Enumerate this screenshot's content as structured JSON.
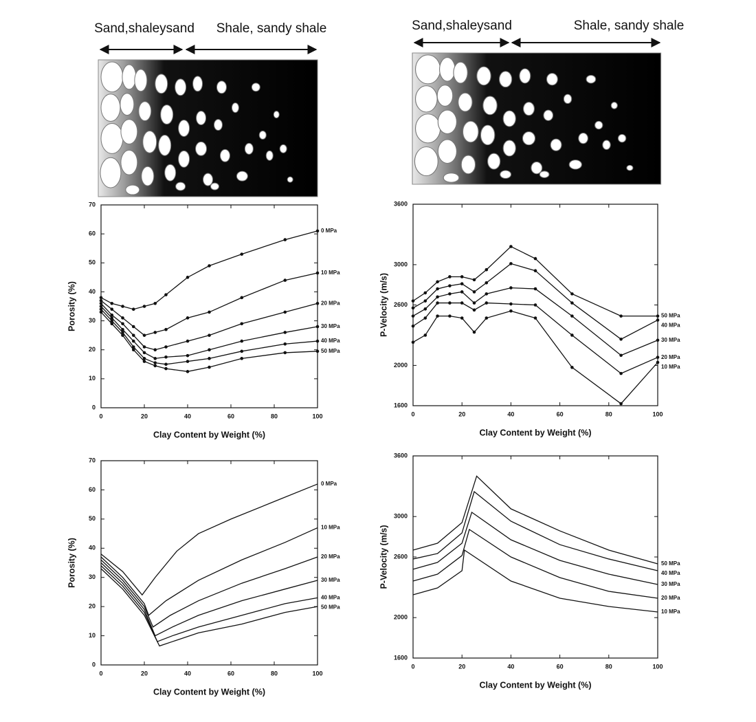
{
  "diagrams": [
    {
      "left_label": "Sand,shaleysand",
      "right_label": "Shale, sandy shale"
    },
    {
      "left_label": "Sand,shaleysand",
      "right_label": "Shale, sandy shale"
    }
  ],
  "chart_data": [
    {
      "type": "line",
      "markers": true,
      "xlabel": "Clay Content by Weight (%)",
      "ylabel": "Porosity (%)",
      "xlim": [
        0,
        100
      ],
      "xticks": [
        0,
        20,
        40,
        60,
        80,
        100
      ],
      "ylim": [
        0,
        70
      ],
      "yticks": [
        0,
        10,
        20,
        30,
        40,
        50,
        60,
        70
      ],
      "x": [
        0,
        5,
        10,
        15,
        20,
        25,
        30,
        40,
        50,
        65,
        85,
        100
      ],
      "series": [
        {
          "name": "0 MPa",
          "color": "#111",
          "values": [
            38,
            36,
            35,
            34,
            35,
            36,
            39,
            45,
            49,
            53,
            58,
            61
          ]
        },
        {
          "name": "10 MPa",
          "color": "#111",
          "values": [
            37,
            34,
            31,
            28,
            25,
            26,
            27,
            31,
            33,
            38,
            44,
            46.5
          ]
        },
        {
          "name": "20 MPa",
          "color": "#111",
          "values": [
            36,
            32,
            29,
            25,
            21,
            20,
            21,
            23,
            25,
            29,
            33,
            36
          ]
        },
        {
          "name": "30 MPa",
          "color": "#111",
          "values": [
            35,
            31,
            27,
            23,
            19,
            17,
            17.5,
            18,
            20,
            23,
            26,
            28
          ]
        },
        {
          "name": "40 MPa",
          "color": "#111",
          "values": [
            34,
            30,
            26,
            21,
            17,
            15.5,
            15,
            16,
            17,
            19.5,
            22,
            23
          ]
        },
        {
          "name": "50 MPa",
          "color": "#111",
          "values": [
            33,
            29,
            25,
            20,
            16,
            14.5,
            13.5,
            12.5,
            14,
            17,
            19,
            19.5
          ]
        }
      ]
    },
    {
      "type": "line",
      "markers": true,
      "xlabel": "Clay Content by Weight (%)",
      "ylabel": "P-Velocity (m/s)",
      "xlim": [
        0,
        100
      ],
      "xticks": [
        0,
        20,
        40,
        60,
        80,
        100
      ],
      "ylim": [
        1600,
        3600
      ],
      "yticks": [
        1600,
        2000,
        2600,
        3000,
        3600
      ],
      "x": [
        0,
        5,
        10,
        15,
        20,
        25,
        30,
        40,
        50,
        65,
        85,
        100
      ],
      "series": [
        {
          "name": "50 MPa",
          "color": "#111",
          "values": [
            2640,
            2720,
            2830,
            2880,
            2880,
            2850,
            2950,
            3180,
            3060,
            2710,
            2490,
            2490
          ]
        },
        {
          "name": "40 MPa",
          "color": "#111",
          "values": [
            2570,
            2640,
            2760,
            2790,
            2810,
            2730,
            2820,
            3010,
            2940,
            2620,
            2260,
            2450
          ]
        },
        {
          "name": "30 MPa",
          "color": "#111",
          "values": [
            2490,
            2560,
            2680,
            2710,
            2730,
            2620,
            2710,
            2770,
            2760,
            2490,
            2100,
            2250
          ]
        },
        {
          "name": "20 MPa",
          "color": "#111",
          "values": [
            2390,
            2470,
            2620,
            2620,
            2620,
            2550,
            2620,
            2610,
            2600,
            2300,
            1920,
            2080
          ]
        },
        {
          "name": "10 MPa",
          "color": "#111",
          "values": [
            2230,
            2300,
            2490,
            2490,
            2470,
            2330,
            2470,
            2540,
            2470,
            1980,
            1620,
            2030
          ]
        }
      ]
    },
    {
      "type": "line",
      "markers": false,
      "xlabel": "Clay Content by Weight (%)",
      "ylabel": "Porosity (%)",
      "xlim": [
        0,
        100
      ],
      "xticks": [
        0,
        20,
        40,
        60,
        80,
        100
      ],
      "ylim": [
        0,
        70
      ],
      "yticks": [
        0,
        10,
        20,
        30,
        40,
        50,
        60,
        70
      ],
      "series": [
        {
          "name": "0 MPa",
          "color": "#111",
          "x": [
            0,
            10,
            19,
            25,
            35,
            45,
            60,
            80,
            100
          ],
          "values": [
            38,
            32,
            24,
            30,
            39,
            45,
            50,
            56,
            62
          ]
        },
        {
          "name": "10 MPa",
          "color": "#111",
          "x": [
            0,
            10,
            20,
            22,
            30,
            45,
            65,
            85,
            100
          ],
          "values": [
            37,
            30,
            21,
            17,
            22,
            29,
            36,
            42,
            47
          ]
        },
        {
          "name": "20 MPa",
          "color": "#111",
          "x": [
            0,
            10,
            20,
            24,
            32,
            45,
            65,
            85,
            100
          ],
          "values": [
            36,
            29,
            20,
            13,
            17,
            22,
            28,
            33,
            37
          ]
        },
        {
          "name": "30 MPa",
          "color": "#111",
          "x": [
            0,
            10,
            20,
            25,
            33,
            45,
            65,
            85,
            100
          ],
          "values": [
            35,
            28,
            19,
            10,
            13,
            17,
            22,
            26,
            29
          ]
        },
        {
          "name": "40 MPa",
          "color": "#111",
          "x": [
            0,
            10,
            20,
            26,
            33,
            45,
            65,
            85,
            100
          ],
          "values": [
            34,
            27,
            18,
            8,
            10,
            13,
            17,
            21,
            23
          ]
        },
        {
          "name": "50 MPa",
          "color": "#111",
          "x": [
            0,
            10,
            20,
            27,
            33,
            45,
            65,
            85,
            100
          ],
          "values": [
            33,
            26,
            17,
            6.5,
            8,
            11,
            14,
            18,
            20
          ]
        }
      ]
    },
    {
      "type": "line",
      "markers": false,
      "xlabel": "Clay Content by Weight (%)",
      "ylabel": "P-Velocity (m/s)",
      "xlim": [
        0,
        100
      ],
      "xticks": [
        0,
        20,
        40,
        60,
        80,
        100
      ],
      "ylim": [
        1600,
        3600
      ],
      "yticks": [
        1600,
        2000,
        2600,
        3000,
        3600
      ],
      "series": [
        {
          "name": "50 MPa",
          "color": "#111",
          "x": [
            0,
            10,
            20,
            26,
            40,
            60,
            80,
            100
          ],
          "values": [
            2668,
            2736,
            2940,
            3400,
            3076,
            2858,
            2668,
            2532
          ]
        },
        {
          "name": "40 MPa",
          "color": "#111",
          "x": [
            0,
            10,
            20,
            25,
            40,
            60,
            80,
            100
          ],
          "values": [
            2580,
            2634,
            2838,
            3246,
            2954,
            2722,
            2580,
            2464
          ]
        },
        {
          "name": "30 MPa",
          "color": "#111",
          "x": [
            0,
            10,
            20,
            24,
            40,
            60,
            80,
            100
          ],
          "values": [
            2478,
            2546,
            2736,
            3042,
            2770,
            2566,
            2430,
            2328
          ]
        },
        {
          "name": "20 MPa",
          "color": "#111",
          "x": [
            0,
            10,
            20,
            23,
            40,
            60,
            80,
            100
          ],
          "values": [
            2362,
            2430,
            2614,
            2872,
            2600,
            2396,
            2260,
            2192
          ]
        },
        {
          "name": "10 MPa",
          "color": "#111",
          "x": [
            0,
            10,
            20,
            21,
            40,
            60,
            80,
            100
          ],
          "values": [
            2226,
            2294,
            2464,
            2668,
            2362,
            2192,
            2110,
            2056
          ]
        }
      ]
    }
  ]
}
